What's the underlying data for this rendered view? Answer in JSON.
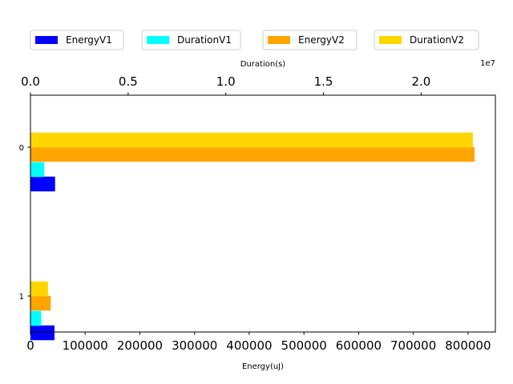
{
  "chart_data": {
    "type": "bar",
    "orientation": "horizontal",
    "categories": [
      "0",
      "1"
    ],
    "bottom_axis": {
      "label": "Energy(uJ)",
      "lim": [
        0,
        850000
      ],
      "ticks": [
        0,
        100000,
        200000,
        300000,
        400000,
        500000,
        600000,
        700000,
        800000
      ],
      "tick_labels": [
        "0",
        "100000",
        "200000",
        "300000",
        "400000",
        "500000",
        "600000",
        "700000",
        "800000"
      ]
    },
    "top_axis": {
      "label": "Duration(s)",
      "lim": [
        0,
        2.38
      ],
      "multiplier_label": "1e7",
      "ticks": [
        0,
        0.5,
        1.0,
        1.5,
        2.0
      ],
      "tick_labels": [
        "0.0",
        "0.5",
        "1.0",
        "1.5",
        "2.0"
      ]
    },
    "series": [
      {
        "name": "EnergyV1",
        "axis": "bottom",
        "color": "#0000ff",
        "values": [
          45000,
          44000
        ]
      },
      {
        "name": "DurationV1",
        "axis": "top",
        "color": "#00ffff",
        "values": [
          0.07,
          0.055
        ]
      },
      {
        "name": "EnergyV2",
        "axis": "bottom",
        "color": "#ffa500",
        "values": [
          812000,
          37000
        ]
      },
      {
        "name": "DurationV2",
        "axis": "top",
        "color": "#ffd700",
        "values": [
          2.265,
          0.09
        ]
      }
    ],
    "legend_placement": "top",
    "grid": false
  }
}
